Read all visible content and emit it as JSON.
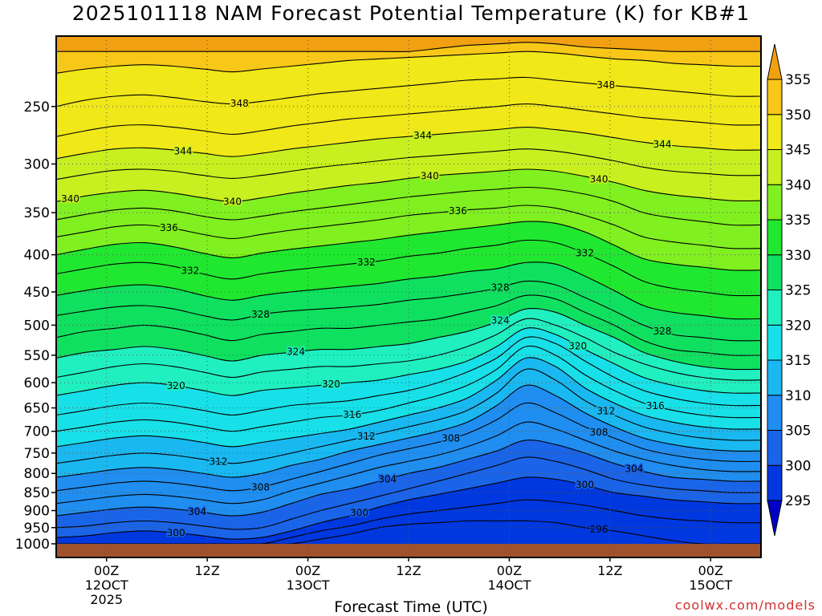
{
  "page": {
    "title": "2025101118 NAM Forecast Potential Temperature (K) for KB#1",
    "credit": "coolwx.com/models"
  },
  "colors": {
    "ground": "#a0522d",
    "frame": "#000000",
    "contour": "#000000",
    "credit": "#d03030",
    "grid": "#555555"
  },
  "chart_data": {
    "type": "heatmap",
    "title": "2025101118 NAM Forecast Potential Temperature (K) for KB#1",
    "xlabel": "Forecast Time (UTC)",
    "ylabel": "",
    "y_scale": "log-pressure (hPa), inverted",
    "ylim": [
      1000,
      200
    ],
    "y_ticks": [
      250,
      300,
      350,
      400,
      450,
      500,
      550,
      600,
      650,
      700,
      750,
      800,
      850,
      900,
      950,
      1000
    ],
    "y_tick_labels": [
      "250",
      "300",
      "350",
      "400",
      "450",
      "500",
      "550",
      "600",
      "650",
      "700",
      "750",
      "800",
      "850",
      "900",
      "950",
      "1000"
    ],
    "x_ticks": [
      {
        "hour": 6,
        "lines": [
          "00Z",
          "12OCT",
          "2025"
        ]
      },
      {
        "hour": 18,
        "lines": [
          "12Z"
        ]
      },
      {
        "hour": 30,
        "lines": [
          "00Z",
          "13OCT"
        ]
      },
      {
        "hour": 42,
        "lines": [
          "12Z"
        ]
      },
      {
        "hour": 54,
        "lines": [
          "00Z",
          "14OCT"
        ]
      },
      {
        "hour": 66,
        "lines": [
          "12Z"
        ]
      },
      {
        "hour": 78,
        "lines": [
          "00Z",
          "15OCT"
        ]
      }
    ],
    "xlim_hours": [
      0,
      84
    ],
    "grid": true,
    "colorbar": {
      "levels": [
        295,
        300,
        305,
        310,
        315,
        320,
        325,
        330,
        335,
        340,
        345,
        350,
        355
      ],
      "labels": [
        "295",
        "300",
        "305",
        "310",
        "315",
        "320",
        "325",
        "330",
        "335",
        "340",
        "345",
        "350",
        "355"
      ],
      "colors": [
        "#0000c8",
        "#0038e0",
        "#1a64e8",
        "#1f8ef0",
        "#1ab8f0",
        "#18e0e8",
        "#20f0c0",
        "#10e060",
        "#20e830",
        "#80f020",
        "#c8f020",
        "#f0e818",
        "#f8c818",
        "#f0a010"
      ],
      "placement": "right"
    },
    "contour_interval": 4,
    "contour_labels": [
      "348",
      "344",
      "348",
      "344",
      "340",
      "344",
      "340",
      "336",
      "340",
      "340",
      "336",
      "332",
      "332",
      "332",
      "328",
      "328",
      "328",
      "324",
      "324",
      "320",
      "320",
      "320",
      "312",
      "316",
      "316",
      "308",
      "312",
      "312",
      "304",
      "308",
      "300",
      "308",
      "304",
      "304",
      "296",
      "300",
      "300"
    ],
    "series": [
      {
        "theta": 296,
        "p": [
          1000,
          1000,
          1000,
          1000,
          1000,
          1000,
          1000,
          1000,
          1000,
          985,
          970,
          950,
          940,
          935,
          930,
          930,
          930,
          935,
          950,
          960,
          975,
          990,
          1000,
          1000,
          1000
        ]
      },
      {
        "theta": 298,
        "p": [
          1000,
          1000,
          1000,
          1000,
          1000,
          1000,
          1000,
          1000,
          980,
          960,
          945,
          925,
          910,
          900,
          890,
          880,
          870,
          875,
          885,
          900,
          915,
          925,
          930,
          935,
          935
        ]
      },
      {
        "theta": 300,
        "p": [
          980,
          975,
          965,
          960,
          965,
          975,
          985,
          980,
          960,
          935,
          915,
          890,
          870,
          855,
          840,
          825,
          810,
          815,
          830,
          850,
          860,
          870,
          875,
          880,
          880
        ]
      },
      {
        "theta": 302,
        "p": [
          950,
          945,
          935,
          930,
          935,
          945,
          955,
          950,
          925,
          900,
          880,
          860,
          840,
          820,
          800,
          780,
          760,
          770,
          790,
          815,
          830,
          840,
          845,
          850,
          850
        ]
      },
      {
        "theta": 304,
        "p": [
          915,
          905,
          895,
          890,
          895,
          905,
          915,
          905,
          880,
          855,
          840,
          820,
          800,
          785,
          765,
          745,
          720,
          730,
          750,
          775,
          795,
          810,
          815,
          820,
          820
        ]
      },
      {
        "theta": 306,
        "p": [
          880,
          870,
          860,
          855,
          860,
          870,
          880,
          870,
          845,
          825,
          805,
          785,
          770,
          755,
          735,
          710,
          680,
          695,
          720,
          745,
          765,
          780,
          790,
          795,
          795
        ]
      },
      {
        "theta": 308,
        "p": [
          845,
          835,
          825,
          820,
          825,
          835,
          845,
          835,
          815,
          795,
          775,
          755,
          740,
          725,
          705,
          675,
          640,
          660,
          690,
          715,
          740,
          755,
          765,
          770,
          770
        ]
      },
      {
        "theta": 310,
        "p": [
          810,
          800,
          790,
          785,
          790,
          800,
          810,
          800,
          780,
          765,
          745,
          730,
          715,
          700,
          680,
          645,
          605,
          625,
          660,
          690,
          715,
          730,
          740,
          745,
          745
        ]
      },
      {
        "theta": 312,
        "p": [
          775,
          765,
          755,
          750,
          755,
          765,
          775,
          765,
          750,
          735,
          720,
          705,
          690,
          675,
          655,
          620,
          575,
          595,
          635,
          665,
          690,
          705,
          715,
          720,
          720
        ]
      },
      {
        "theta": 314,
        "p": [
          735,
          725,
          715,
          710,
          715,
          725,
          735,
          725,
          715,
          705,
          695,
          680,
          665,
          650,
          630,
          595,
          555,
          570,
          610,
          640,
          665,
          680,
          690,
          695,
          695
        ]
      },
      {
        "theta": 316,
        "p": [
          700,
          690,
          680,
          675,
          680,
          690,
          700,
          690,
          680,
          670,
          665,
          655,
          640,
          625,
          605,
          575,
          535,
          550,
          585,
          615,
          640,
          655,
          665,
          670,
          670
        ]
      },
      {
        "theta": 318,
        "p": [
          665,
          655,
          645,
          640,
          645,
          655,
          665,
          655,
          645,
          640,
          635,
          625,
          615,
          600,
          580,
          555,
          520,
          530,
          560,
          590,
          615,
          630,
          640,
          645,
          645
        ]
      },
      {
        "theta": 320,
        "p": [
          625,
          615,
          605,
          600,
          605,
          615,
          625,
          615,
          610,
          605,
          600,
          595,
          585,
          575,
          560,
          535,
          505,
          515,
          540,
          565,
          590,
          605,
          615,
          620,
          620
        ]
      },
      {
        "theta": 322,
        "p": [
          590,
          580,
          570,
          565,
          570,
          580,
          590,
          580,
          575,
          570,
          570,
          565,
          560,
          550,
          535,
          515,
          490,
          500,
          520,
          545,
          565,
          580,
          590,
          595,
          595
        ]
      },
      {
        "theta": 324,
        "p": [
          555,
          545,
          540,
          535,
          540,
          550,
          560,
          550,
          545,
          540,
          540,
          535,
          530,
          520,
          510,
          495,
          475,
          480,
          500,
          520,
          545,
          560,
          570,
          575,
          575
        ]
      },
      {
        "theta": 326,
        "p": [
          520,
          510,
          505,
          500,
          505,
          515,
          525,
          515,
          510,
          505,
          505,
          500,
          495,
          490,
          480,
          470,
          455,
          460,
          480,
          500,
          525,
          540,
          545,
          550,
          550
        ]
      },
      {
        "theta": 328,
        "p": [
          485,
          478,
          472,
          470,
          475,
          485,
          492,
          483,
          478,
          475,
          472,
          468,
          462,
          458,
          452,
          445,
          435,
          440,
          458,
          478,
          500,
          515,
          520,
          525,
          525
        ]
      },
      {
        "theta": 330,
        "p": [
          455,
          448,
          442,
          440,
          445,
          455,
          462,
          455,
          450,
          446,
          442,
          438,
          432,
          428,
          422,
          418,
          410,
          412,
          428,
          448,
          470,
          480,
          485,
          490,
          490
        ]
      },
      {
        "theta": 332,
        "p": [
          425,
          418,
          412,
          410,
          415,
          425,
          432,
          425,
          420,
          416,
          412,
          408,
          402,
          398,
          392,
          388,
          382,
          385,
          398,
          415,
          435,
          445,
          450,
          455,
          455
        ]
      },
      {
        "theta": 334,
        "p": [
          400,
          393,
          387,
          385,
          390,
          398,
          404,
          398,
          393,
          389,
          385,
          381,
          376,
          372,
          368,
          364,
          360,
          362,
          372,
          388,
          405,
          412,
          416,
          420,
          420
        ]
      },
      {
        "theta": 336,
        "p": [
          378,
          372,
          366,
          364,
          368,
          375,
          380,
          375,
          370,
          366,
          362,
          358,
          353,
          350,
          347,
          345,
          342,
          345,
          353,
          364,
          378,
          384,
          388,
          392,
          392
        ]
      },
      {
        "theta": 338,
        "p": [
          358,
          352,
          347,
          345,
          348,
          354,
          358,
          354,
          349,
          345,
          341,
          337,
          333,
          330,
          327,
          325,
          323,
          325,
          330,
          338,
          350,
          356,
          360,
          364,
          364
        ]
      },
      {
        "theta": 340,
        "p": [
          338,
          332,
          328,
          326,
          329,
          334,
          338,
          334,
          329,
          325,
          321,
          318,
          314,
          311,
          309,
          307,
          305,
          307,
          312,
          318,
          326,
          331,
          334,
          337,
          337
        ]
      },
      {
        "theta": 342,
        "p": [
          315,
          310,
          306,
          305,
          307,
          311,
          314,
          311,
          307,
          303,
          300,
          297,
          294,
          292,
          290,
          288,
          286,
          288,
          292,
          297,
          303,
          307,
          309,
          311,
          311
        ]
      },
      {
        "theta": 344,
        "p": [
          295,
          290,
          286,
          285,
          287,
          290,
          293,
          290,
          286,
          283,
          280,
          277,
          275,
          273,
          271,
          269,
          267,
          269,
          272,
          276,
          280,
          283,
          285,
          287,
          287
        ]
      },
      {
        "theta": 346,
        "p": [
          275,
          270,
          266,
          265,
          267,
          270,
          273,
          270,
          266,
          263,
          260,
          258,
          256,
          254,
          252,
          250,
          248,
          250,
          253,
          256,
          259,
          261,
          263,
          265,
          265
        ]
      },
      {
        "theta": 348,
        "p": [
          250,
          245,
          242,
          241,
          243,
          246,
          248,
          246,
          243,
          240,
          238,
          236,
          234,
          232,
          230,
          229,
          228,
          230,
          232,
          234,
          236,
          238,
          240,
          242,
          242
        ]
      },
      {
        "theta": 350,
        "p": [
          225,
          222,
          220,
          219,
          220,
          222,
          224,
          222,
          220,
          218,
          216,
          215,
          214,
          213,
          212,
          211,
          210,
          211,
          213,
          215,
          216,
          218,
          219,
          220,
          220
        ]
      },
      {
        "theta": 352,
        "p": [
          210,
          210,
          210,
          210,
          210,
          210,
          210,
          210,
          210,
          210,
          210,
          210,
          210,
          208,
          206,
          205,
          204,
          205,
          207,
          208,
          209,
          210,
          210,
          210,
          210
        ]
      }
    ]
  }
}
